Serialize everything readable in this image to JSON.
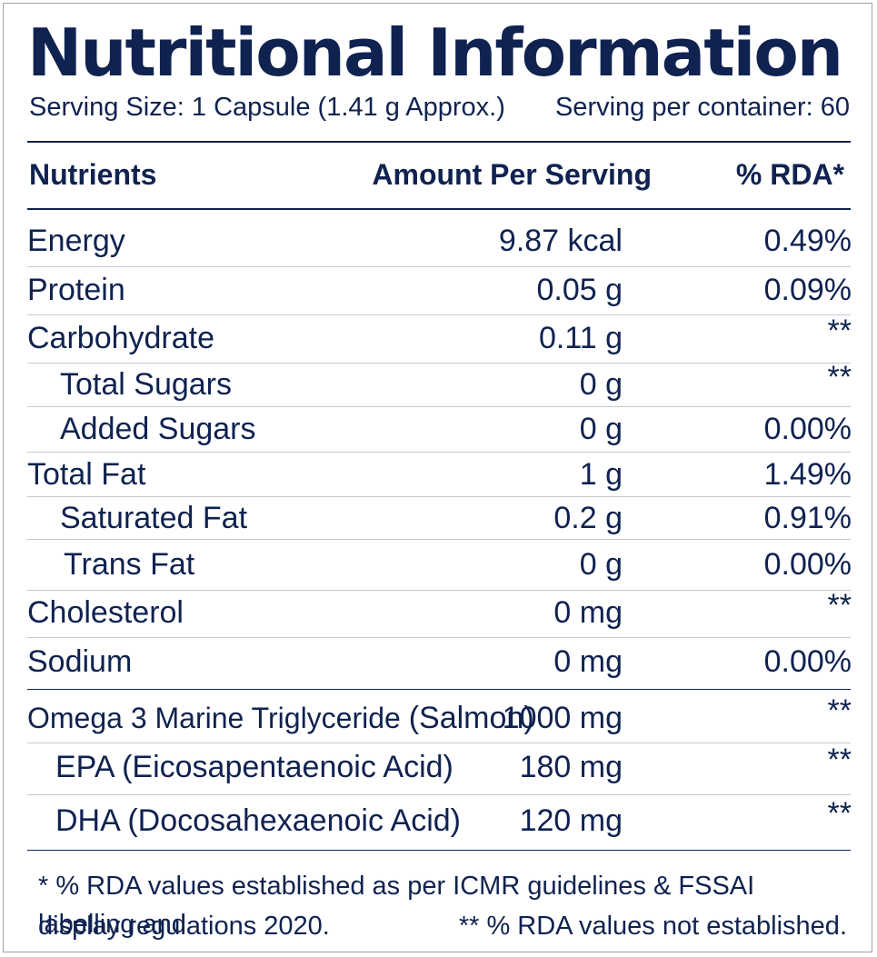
{
  "title": "Nutritional Information",
  "serving": {
    "size": "Serving Size: 1 Capsule (1.41 g Approx.)",
    "per_container": "Serving per container: 60"
  },
  "headers": {
    "nutrients": "Nutrients",
    "amount": "Amount Per Serving",
    "rda": "% RDA*"
  },
  "rows": [
    {
      "name": "Energy",
      "amount": "9.87 kcal",
      "rda": "0.49%"
    },
    {
      "name": "Protein",
      "amount": "0.05 g",
      "rda": "0.09%"
    },
    {
      "name": "Carbohydrate",
      "amount": "0.11 g",
      "rda": "**"
    },
    {
      "name": "Total Sugars",
      "amount": "0 g",
      "rda": "**"
    },
    {
      "name": "Added Sugars",
      "amount": "0 g",
      "rda": "0.00%"
    },
    {
      "name": "Total Fat",
      "amount": "1 g",
      "rda": "1.49%"
    },
    {
      "name": "Saturated Fat",
      "amount": "0.2 g",
      "rda": "0.91%"
    },
    {
      "name": "Trans Fat",
      "amount": "0 g",
      "rda": "0.00%"
    },
    {
      "name": "Cholesterol",
      "amount": "0 mg",
      "rda": "**"
    },
    {
      "name": "Sodium",
      "amount": "0 mg",
      "rda": "0.00%"
    }
  ],
  "omega": {
    "name": "Omega 3 Marine Triglyceride",
    "source": "(Salmon)",
    "amount": "1000 mg",
    "rda": "**"
  },
  "omega_rows": [
    {
      "name": "EPA (Eicosapentaenoic Acid)",
      "amount": "180 mg",
      "rda": "**"
    },
    {
      "name": "DHA (Docosahexaenoic Acid)",
      "amount": "120 mg",
      "rda": "**"
    }
  ],
  "footnotes": {
    "line1": "* % RDA values established as per ICMR guidelines & FSSAI labelling and",
    "line2_left": "display regulations 2020.",
    "line2_right": "** % RDA values not established."
  },
  "colors": {
    "text": "#0f2250",
    "divider": "#c5c9d2",
    "border": "#9aa1ad"
  }
}
